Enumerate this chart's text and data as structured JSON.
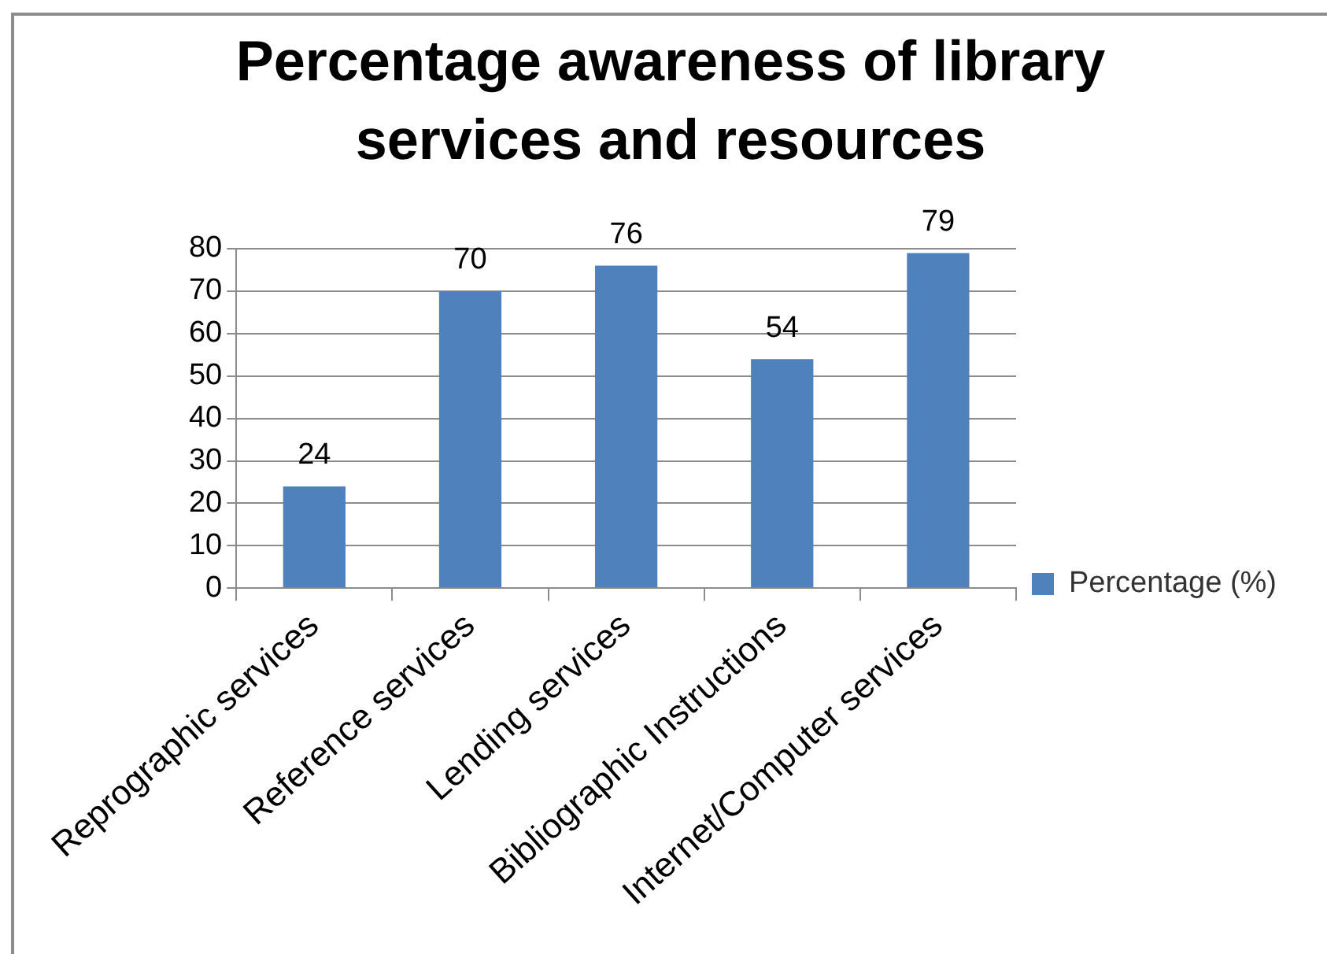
{
  "chart_data": {
    "type": "bar",
    "title": "Percentage awareness of library services and resources",
    "categories": [
      "Reprographic services",
      "Reference services",
      "Lending services",
      "Bibliographic Instructions",
      "Internet/Computer services"
    ],
    "series": [
      {
        "name": "Percentage (%)",
        "color": "#4f81bd",
        "values": [
          24,
          70,
          76,
          54,
          79
        ]
      }
    ],
    "ylim": [
      0,
      80
    ],
    "yticks": [
      0,
      10,
      20,
      30,
      40,
      50,
      60,
      70,
      80
    ],
    "grid": "y",
    "legend": "right",
    "data_labels": true
  }
}
